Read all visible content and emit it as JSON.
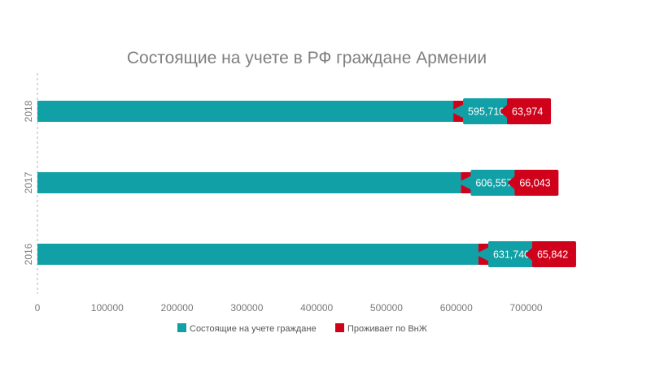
{
  "chart_data": {
    "type": "bar",
    "orientation": "horizontal",
    "stacked": true,
    "title": "Состоящие на учете в РФ граждане Армении",
    "categories": [
      "2018",
      "2017",
      "2016"
    ],
    "series": [
      {
        "name": "Состоящие на учете граждане",
        "values": [
          595710,
          606557,
          631740
        ],
        "labels": [
          "595,710",
          "606,557",
          "631,740"
        ],
        "color": "#10a0a5"
      },
      {
        "name": "Проживает по ВнЖ",
        "values": [
          63974,
          66043,
          65842
        ],
        "labels": [
          "63,974",
          "66,043",
          "65,842"
        ],
        "color": "#d0021b"
      }
    ],
    "xlim": [
      0,
      760000
    ],
    "xticks": [
      0,
      100000,
      200000,
      300000,
      400000,
      500000,
      600000,
      700000
    ],
    "xtick_labels": [
      "0",
      "100000",
      "200000",
      "300000",
      "400000",
      "500000",
      "600000",
      "700000"
    ],
    "grid": false,
    "legend": "bottom"
  }
}
